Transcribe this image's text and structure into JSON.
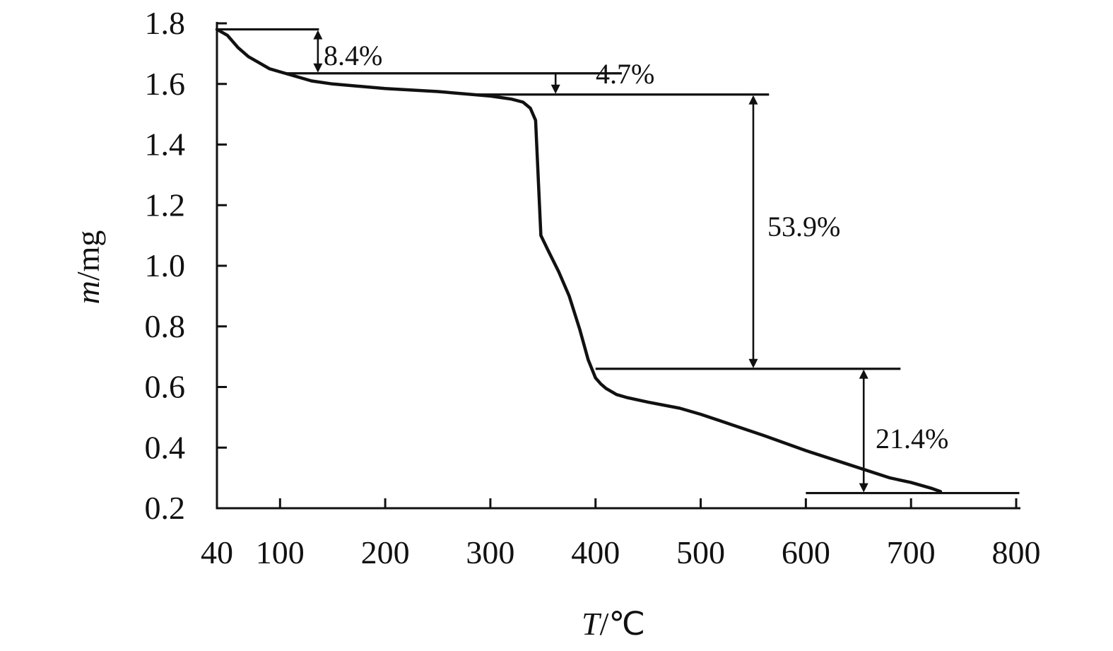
{
  "chart_data": {
    "type": "line",
    "title": "",
    "xlabel_italic": "T",
    "xlabel_rest": "/℃",
    "ylabel_italic": "m",
    "ylabel_rest": "/mg",
    "xlim": [
      40,
      800
    ],
    "ylim": [
      0.2,
      1.8
    ],
    "x_ticks": [
      40,
      100,
      200,
      300,
      400,
      500,
      600,
      700,
      800
    ],
    "x_tick_labels": [
      "40",
      "100",
      "200",
      "300",
      "400",
      "500",
      "600",
      "700",
      "800"
    ],
    "y_ticks": [
      0.2,
      0.4,
      0.6,
      0.8,
      1.0,
      1.2,
      1.4,
      1.6,
      1.8
    ],
    "y_tick_labels": [
      "0.2",
      "0.4",
      "0.6",
      "0.8",
      "1.0",
      "1.2",
      "1.4",
      "1.6",
      "1.8"
    ],
    "grid": false,
    "legend": "none",
    "series": [
      {
        "x": [
          40,
          50,
          60,
          70,
          80,
          90,
          100,
          110,
          130,
          150,
          200,
          250,
          300,
          320,
          331,
          338,
          343,
          348,
          355,
          365,
          375,
          385,
          393,
          400,
          405,
          410,
          420,
          430,
          450,
          480,
          500,
          530,
          560,
          600,
          640,
          680,
          700,
          720,
          728
        ],
        "y": [
          1.78,
          1.76,
          1.72,
          1.69,
          1.67,
          1.65,
          1.64,
          1.63,
          1.61,
          1.6,
          1.585,
          1.575,
          1.56,
          1.55,
          1.54,
          1.52,
          1.48,
          1.1,
          1.05,
          0.98,
          0.9,
          0.79,
          0.69,
          0.63,
          0.61,
          0.595,
          0.575,
          0.565,
          0.55,
          0.53,
          0.51,
          0.475,
          0.44,
          0.39,
          0.345,
          0.3,
          0.285,
          0.265,
          0.255
        ]
      }
    ],
    "reference_lines": [
      {
        "y": 1.78,
        "x_from": 40,
        "x_to": 137
      },
      {
        "y": 1.635,
        "x_from": 105,
        "x_to": 425
      },
      {
        "y": 1.565,
        "x_from": 280,
        "x_to": 565
      },
      {
        "y": 0.66,
        "x_from": 400,
        "x_to": 690
      },
      {
        "y": 0.25,
        "x_from": 600,
        "x_to": 803
      }
    ],
    "annotations": [
      {
        "label": "8.4%",
        "x": 136,
        "y_top": 1.78,
        "y_bottom": 1.635,
        "type": "double-arrow"
      },
      {
        "label": "4.7%",
        "x": 362,
        "y_top": 1.635,
        "y_bottom": 1.565,
        "type": "down-arrow"
      },
      {
        "label": "53.9%",
        "x": 550,
        "y_top": 1.565,
        "y_bottom": 0.66,
        "type": "double-arrow"
      },
      {
        "label": "21.4%",
        "x": 655,
        "y_top": 0.66,
        "y_bottom": 0.25,
        "type": "double-arrow"
      }
    ]
  }
}
